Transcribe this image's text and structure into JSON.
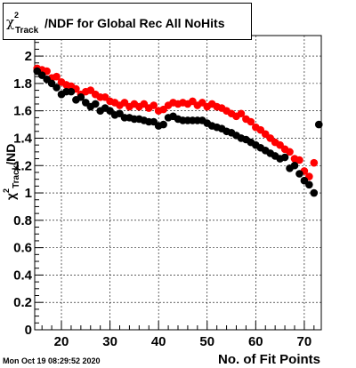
{
  "title": {
    "symbol": "χ",
    "sup": "2",
    "sub": "Track",
    "rest": "/NDF for Global Rec All NoHits"
  },
  "ylabel": {
    "symbol": "χ",
    "sup": "2",
    "sub": "Track",
    "rest": "/ND"
  },
  "xlabel": "No. of Fit Points",
  "timestamp": "Mon Oct 19 08:29:52 2020",
  "chart_data": {
    "type": "scatter",
    "xlim": [
      14.5,
      73.5
    ],
    "ylim": [
      0,
      2.15
    ],
    "xticks": [
      20,
      30,
      40,
      50,
      60,
      70
    ],
    "yticks": [
      0,
      0.2,
      0.4,
      0.6,
      0.8,
      1,
      1.2,
      1.4,
      1.6,
      1.8,
      2
    ],
    "ytick_labels": [
      "0",
      "0.2",
      "0.4",
      "0.6",
      "0.8",
      "1",
      "1.2",
      "1.4",
      "1.6",
      "1.8",
      "2"
    ],
    "grid": true,
    "series": [
      {
        "color": "#ff0000",
        "x": [
          15,
          16,
          17,
          18,
          19,
          20,
          21,
          22,
          23,
          24,
          25,
          26,
          27,
          28,
          29,
          30,
          31,
          32,
          33,
          34,
          35,
          36,
          37,
          38,
          39,
          40,
          41,
          42,
          43,
          44,
          45,
          46,
          47,
          48,
          49,
          50,
          51,
          52,
          53,
          54,
          55,
          56,
          57,
          58,
          59,
          60,
          61,
          62,
          63,
          64,
          65,
          66,
          67,
          68,
          69,
          70,
          71,
          72
        ],
        "y": [
          1.91,
          1.9,
          1.89,
          1.84,
          1.85,
          1.81,
          1.79,
          1.78,
          1.76,
          1.72,
          1.74,
          1.75,
          1.72,
          1.7,
          1.7,
          1.67,
          1.66,
          1.64,
          1.66,
          1.63,
          1.65,
          1.63,
          1.65,
          1.62,
          1.64,
          1.6,
          1.61,
          1.64,
          1.66,
          1.65,
          1.66,
          1.65,
          1.67,
          1.64,
          1.66,
          1.63,
          1.65,
          1.63,
          1.62,
          1.6,
          1.58,
          1.56,
          1.58,
          1.54,
          1.52,
          1.48,
          1.46,
          1.43,
          1.4,
          1.37,
          1.35,
          1.32,
          1.3,
          1.25,
          1.24,
          1.16,
          1.12,
          1.22
        ]
      },
      {
        "color": "#000000",
        "x": [
          15,
          16,
          17,
          18,
          19,
          20,
          21,
          22,
          23,
          24,
          25,
          26,
          27,
          28,
          29,
          30,
          31,
          32,
          33,
          34,
          35,
          36,
          37,
          38,
          39,
          40,
          41,
          42,
          43,
          44,
          45,
          46,
          47,
          48,
          49,
          50,
          51,
          52,
          53,
          54,
          55,
          56,
          57,
          58,
          59,
          60,
          61,
          62,
          63,
          64,
          65,
          66,
          67,
          68,
          69,
          70,
          71,
          72,
          73
        ],
        "y": [
          1.89,
          1.86,
          1.83,
          1.8,
          1.77,
          1.72,
          1.74,
          1.74,
          1.68,
          1.7,
          1.66,
          1.63,
          1.65,
          1.6,
          1.62,
          1.6,
          1.57,
          1.58,
          1.55,
          1.55,
          1.54,
          1.54,
          1.53,
          1.52,
          1.52,
          1.49,
          1.5,
          1.55,
          1.56,
          1.54,
          1.53,
          1.53,
          1.53,
          1.53,
          1.53,
          1.51,
          1.49,
          1.48,
          1.47,
          1.45,
          1.44,
          1.42,
          1.4,
          1.39,
          1.37,
          1.35,
          1.33,
          1.31,
          1.29,
          1.27,
          1.25,
          1.26,
          1.18,
          1.2,
          1.14,
          1.09,
          1.06,
          1.0,
          1.5
        ]
      }
    ]
  }
}
